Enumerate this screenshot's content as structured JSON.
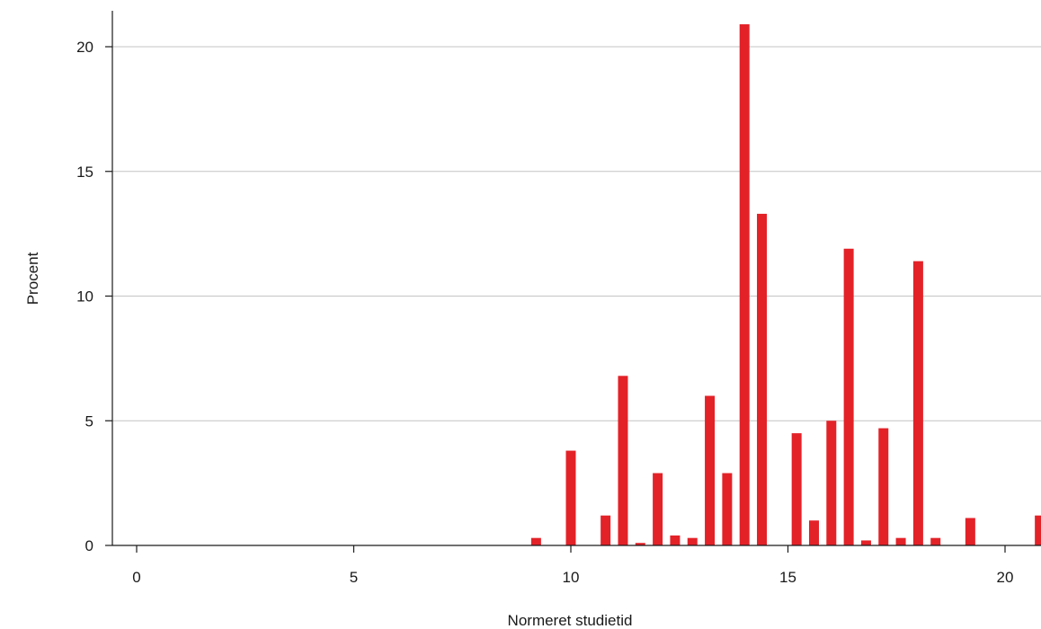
{
  "chart_data": {
    "type": "bar",
    "title": "",
    "xlabel": "Normeret studietid",
    "ylabel": "Procent",
    "xlim": [
      -0.6,
      20.8
    ],
    "ylim": [
      0,
      21.5
    ],
    "x_ticks": [
      "0",
      "5",
      "10",
      "15",
      "20"
    ],
    "y_ticks": [
      "0",
      "5",
      "10",
      "15",
      "20"
    ],
    "grid": "horizontal",
    "legend": "none",
    "bar_color": "#e32228",
    "x": [
      9.2,
      10.0,
      10.8,
      11.2,
      11.6,
      12.0,
      12.4,
      12.8,
      13.2,
      13.6,
      14.0,
      14.4,
      15.2,
      15.6,
      16.0,
      16.4,
      16.8,
      17.2,
      17.6,
      18.0,
      18.4,
      19.2,
      20.8
    ],
    "values": [
      0.3,
      3.8,
      1.2,
      6.8,
      0.1,
      2.9,
      0.4,
      0.3,
      6.0,
      2.9,
      20.9,
      13.3,
      4.5,
      1.0,
      5.0,
      11.9,
      0.2,
      4.7,
      0.3,
      11.4,
      0.3,
      1.1,
      1.2
    ]
  }
}
